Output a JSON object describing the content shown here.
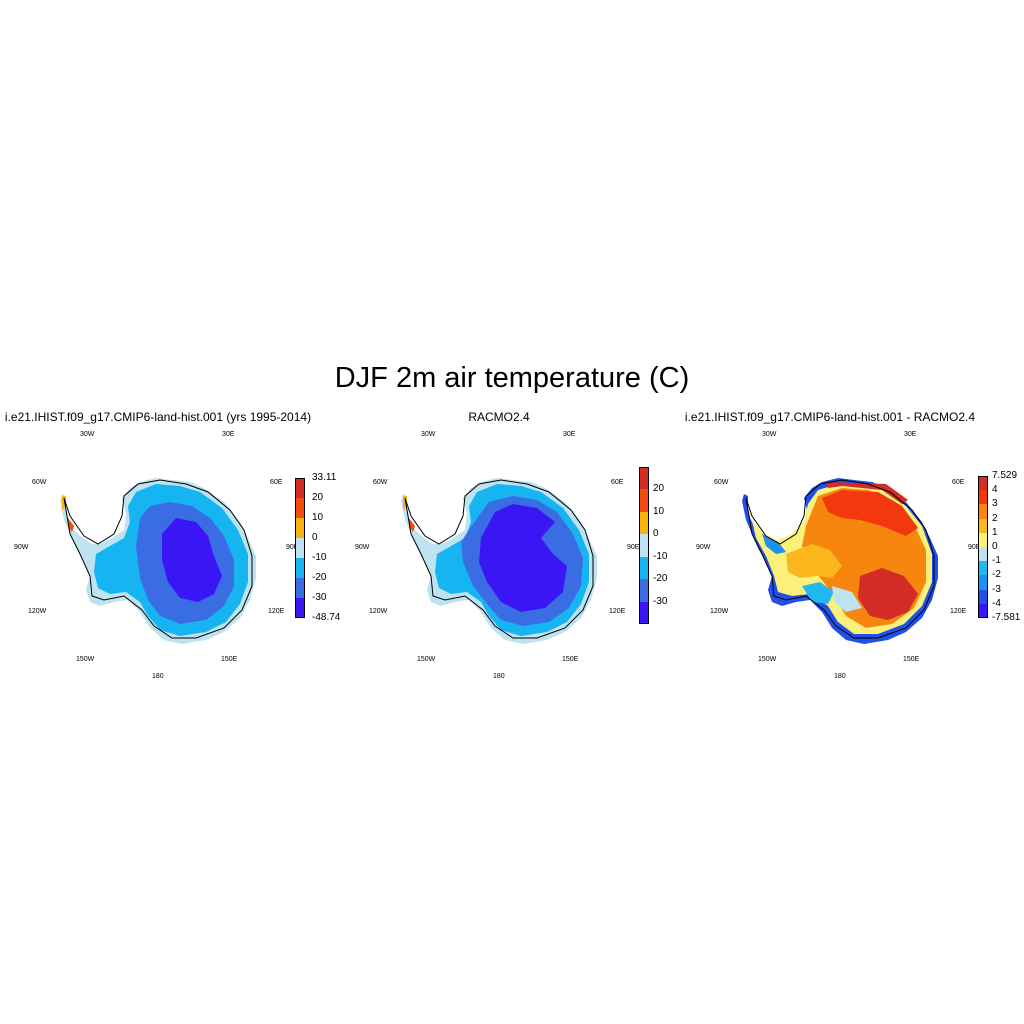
{
  "title": "DJF 2m air temperature (C)",
  "map_labels": {
    "lon_30w": "30W",
    "lon_30e": "30E",
    "lon_60w": "60W",
    "lon_60e": "60E",
    "lon_90w": "90W",
    "lon_90e": "90E",
    "lon_120w": "120W",
    "lon_120e": "120E",
    "lon_150w": "150W",
    "lon_150e": "150E",
    "lon_180": "180"
  },
  "panels": [
    {
      "title": "i.e21.IHIST.f09_g17.CMIP6-land-hist.001 (yrs 1995-2014)",
      "colorbar": {
        "colors": [
          "#3b16f4",
          "#3a6ce4",
          "#17b4f2",
          "#bde2f0",
          "#f7b20e",
          "#f24d0c",
          "#d22c25"
        ],
        "labels": [
          "-48.74",
          "-30",
          "-20",
          "-10",
          "0",
          "10",
          "20",
          "33.11"
        ],
        "min": -48.74,
        "max": 33.11
      }
    },
    {
      "title": "RACMO2.4",
      "colorbar": {
        "colors": [
          "#3b16f4",
          "#3a6ce4",
          "#17b4f2",
          "#bde2f0",
          "#f7b20e",
          "#f24d0c",
          "#d22c25"
        ],
        "labels": [
          "-30",
          "-20",
          "-10",
          "0",
          "10",
          "20"
        ]
      }
    },
    {
      "title": "i.e21.IHIST.f09_g17.CMIP6-land-hist.001 - RACMO2.4",
      "colorbar": {
        "colors": [
          "#3b16f4",
          "#2050e8",
          "#1e90f0",
          "#23b8f2",
          "#bde2f0",
          "#fbf07a",
          "#fbb81e",
          "#f7860e",
          "#f2380c",
          "#d22c25"
        ],
        "labels": [
          "-7.581",
          "-4",
          "-3",
          "-2",
          "-1",
          "0",
          "1",
          "2",
          "3",
          "4",
          "7.529"
        ],
        "min": -7.581,
        "max": 7.529
      }
    }
  ]
}
